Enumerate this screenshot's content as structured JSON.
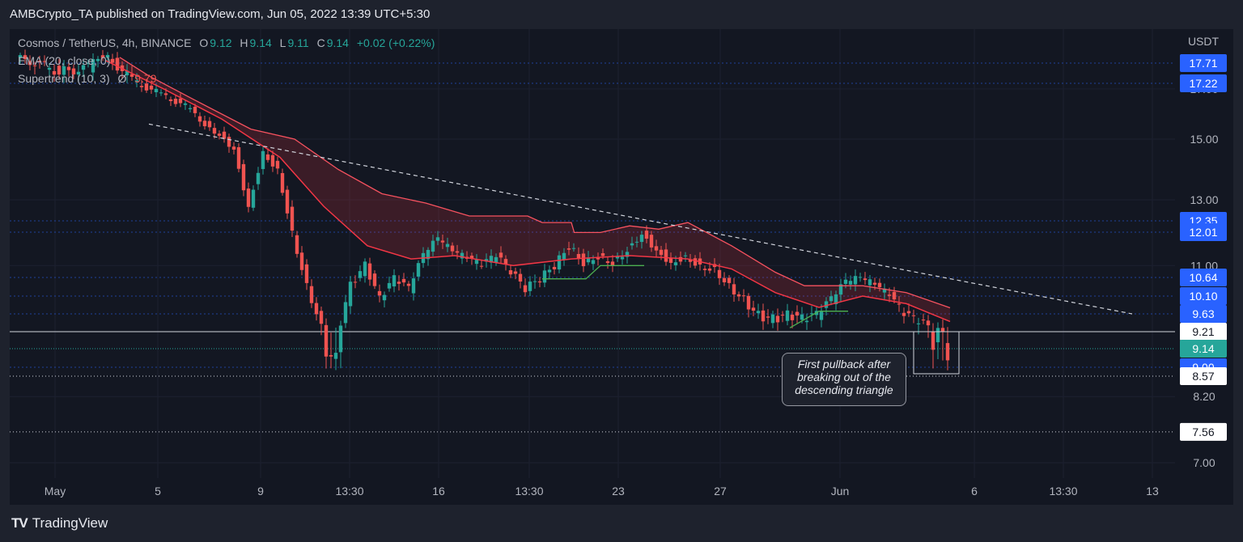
{
  "header": {
    "text": "AMBCrypto_TA published on TradingView.com, Jun 05, 2022 13:39 UTC+5:30"
  },
  "legend": {
    "symbol": "Cosmos / TetherUS, 4h, BINANCE",
    "ohlc": [
      {
        "label": "O",
        "value": "9.12"
      },
      {
        "label": "H",
        "value": "9.14"
      },
      {
        "label": "L",
        "value": "9.11"
      },
      {
        "label": "C",
        "value": "9.14"
      }
    ],
    "change": "+0.02 (+0.22%)",
    "ema_label": "EMA (20, close, 0)",
    "supertrend_label": "Supertrend (10, 3)",
    "supertrend_symbol": "Ø",
    "supertrend_value": "9.79"
  },
  "annotation": {
    "lines": [
      "First pullback after",
      "breaking out of the",
      "descending triangle"
    ]
  },
  "footer": {
    "brand": "TradingView"
  },
  "colors": {
    "background": "#131722",
    "up_candle": "#26a69a",
    "down_candle": "#ef5350",
    "ema": "#f23645",
    "supertrend_down": "#f7525f",
    "supertrend_up": "#4caf50",
    "level_blue": "#2962ff",
    "trendline": "#d1d4dc"
  },
  "chart_data": {
    "type": "candlestick",
    "pair": "ATOM/USDT",
    "timeframe": "4h",
    "currency_label": "USDT",
    "y_ticks": [
      "7.00",
      "8.20",
      "11.00",
      "13.00",
      "15.00",
      "17.00"
    ],
    "x_ticks": [
      "May",
      "5",
      "9",
      "13:30",
      "16",
      "13:30",
      "23",
      "27",
      "Jun",
      "6",
      "13:30",
      "13"
    ],
    "price_levels": [
      {
        "label": "17.71",
        "value": 17.71,
        "style": "blue"
      },
      {
        "label": "17.22",
        "value": 17.22,
        "style": "blue"
      },
      {
        "label": "12.35",
        "value": 12.35,
        "style": "blue"
      },
      {
        "label": "12.01",
        "value": 12.01,
        "style": "blue"
      },
      {
        "label": "10.64",
        "value": 10.64,
        "style": "blue"
      },
      {
        "label": "10.10",
        "value": 10.1,
        "style": "blue"
      },
      {
        "label": "9.63",
        "value": 9.63,
        "style": "blue"
      },
      {
        "label": "9.21",
        "value": 9.21,
        "style": "white"
      },
      {
        "label": "9.14",
        "value": 9.14,
        "style": "current"
      },
      {
        "label": "9.00",
        "value": 9.0,
        "style": "blue"
      },
      {
        "label": "8.57",
        "value": 8.57,
        "style": "white-dotted"
      },
      {
        "label": "7.56",
        "value": 7.56,
        "style": "white-dotted"
      }
    ],
    "trendline": {
      "from": [
        9.0,
        15.6
      ],
      "to": [
        76.5,
        9.63
      ]
    },
    "price_track": [
      [
        0,
        17.9
      ],
      [
        3,
        17.5
      ],
      [
        5,
        17.6
      ],
      [
        6,
        18.0
      ],
      [
        8,
        17.3
      ],
      [
        10,
        16.8
      ],
      [
        12,
        16.2
      ],
      [
        13,
        15.6
      ],
      [
        14,
        15.2
      ],
      [
        15,
        14.7
      ],
      [
        16,
        12.8
      ],
      [
        17,
        14.6
      ],
      [
        18,
        14.0
      ],
      [
        19,
        12.0
      ],
      [
        20,
        10.4
      ],
      [
        21,
        9.3
      ],
      [
        22,
        9.0
      ],
      [
        23,
        10.4
      ],
      [
        24,
        11.0
      ],
      [
        25,
        10.0
      ],
      [
        26,
        10.6
      ],
      [
        27,
        10.3
      ],
      [
        28,
        11.3
      ],
      [
        29,
        11.8
      ],
      [
        30,
        11.4
      ],
      [
        31,
        11.2
      ],
      [
        32,
        11.0
      ],
      [
        33,
        11.3
      ],
      [
        34,
        10.8
      ],
      [
        35,
        10.3
      ],
      [
        36,
        10.6
      ],
      [
        37,
        11.0
      ],
      [
        38,
        11.6
      ],
      [
        39,
        11.1
      ],
      [
        40,
        11.3
      ],
      [
        41,
        11.1
      ],
      [
        42,
        11.5
      ],
      [
        43,
        12.0
      ],
      [
        44,
        11.5
      ],
      [
        45,
        11.1
      ],
      [
        46,
        11.3
      ],
      [
        47,
        11.0
      ],
      [
        48,
        10.9
      ],
      [
        49,
        10.4
      ],
      [
        50,
        10.0
      ],
      [
        51,
        9.6
      ],
      [
        52,
        9.5
      ],
      [
        53,
        9.6
      ],
      [
        54,
        9.5
      ],
      [
        55,
        9.6
      ],
      [
        56,
        10.0
      ],
      [
        57,
        10.5
      ],
      [
        58,
        10.6
      ],
      [
        59,
        10.4
      ],
      [
        60,
        10.1
      ],
      [
        61,
        9.6
      ],
      [
        62,
        9.45
      ],
      [
        63,
        9.2
      ],
      [
        64,
        9.14
      ]
    ],
    "ema_track": [
      [
        6,
        17.8
      ],
      [
        10,
        17.0
      ],
      [
        14,
        15.8
      ],
      [
        18,
        14.4
      ],
      [
        21,
        12.8
      ],
      [
        24,
        11.6
      ],
      [
        27,
        11.2
      ],
      [
        30,
        11.3
      ],
      [
        34,
        11.0
      ],
      [
        38,
        11.2
      ],
      [
        42,
        11.3
      ],
      [
        46,
        11.2
      ],
      [
        49,
        10.9
      ],
      [
        52,
        10.2
      ],
      [
        55,
        9.8
      ],
      [
        58,
        10.1
      ],
      [
        61,
        9.9
      ],
      [
        64,
        9.45
      ]
    ],
    "supertrend_down": [
      [
        7,
        17.9
      ],
      [
        9,
        17.4
      ],
      [
        12,
        16.6
      ],
      [
        16,
        15.4
      ],
      [
        19,
        15.0
      ],
      [
        22,
        14.0
      ],
      [
        25,
        13.2
      ],
      [
        28,
        12.9
      ],
      [
        31,
        12.5
      ],
      [
        35,
        12.5
      ],
      [
        36,
        12.3
      ],
      [
        38,
        12.3
      ],
      [
        38.2,
        12.0
      ],
      [
        40,
        12.0
      ],
      [
        42,
        12.2
      ],
      [
        44,
        12.1
      ],
      [
        46,
        12.3
      ],
      [
        49,
        11.6
      ],
      [
        52,
        10.8
      ],
      [
        54,
        10.4
      ],
      [
        56,
        10.4
      ],
      [
        58,
        10.4
      ],
      [
        61,
        10.2
      ],
      [
        64,
        9.79
      ]
    ],
    "supertrend_up": [
      [
        36,
        10.6
      ],
      [
        39,
        10.6
      ],
      [
        40,
        11.0
      ],
      [
        43,
        11.0
      ],
      [
        53,
        9.3
      ],
      [
        55,
        9.7
      ],
      [
        57,
        9.7
      ]
    ]
  }
}
